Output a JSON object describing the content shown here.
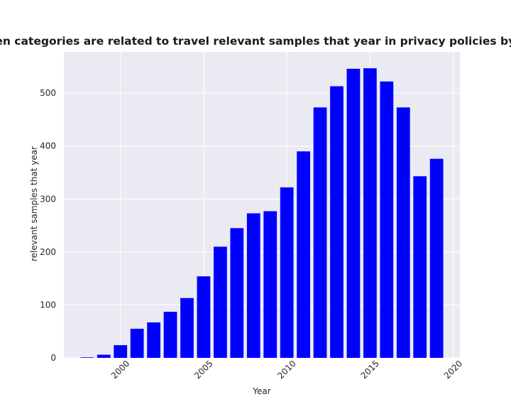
{
  "chart_data": {
    "type": "bar",
    "title": "when categories are related to travel relevant samples that year in privacy policies by Year",
    "xlabel": "Year",
    "ylabel": "relevant samples that year",
    "x": [
      1998,
      1999,
      2000,
      2001,
      2002,
      2003,
      2004,
      2005,
      2006,
      2007,
      2008,
      2009,
      2010,
      2011,
      2012,
      2013,
      2014,
      2015,
      2016,
      2017,
      2018,
      2019
    ],
    "values": [
      1,
      6,
      24,
      55,
      67,
      87,
      113,
      154,
      210,
      245,
      273,
      277,
      322,
      390,
      473,
      513,
      546,
      547,
      522,
      473,
      343,
      376
    ],
    "xlim": [
      1996.6,
      2020.4
    ],
    "ylim": [
      0,
      578
    ],
    "xticks": [
      2000,
      2005,
      2010,
      2015,
      2020
    ],
    "xtick_labels": [
      "2000",
      "2005",
      "2010",
      "2015",
      "2020"
    ],
    "yticks": [
      0,
      100,
      200,
      300,
      400,
      500
    ],
    "ytick_labels": [
      "0",
      "100",
      "200",
      "300",
      "400",
      "500"
    ],
    "bar_color": "#0000ff",
    "background_color": "#eaeaf2",
    "grid_color": "#ffffff",
    "grid": true
  }
}
